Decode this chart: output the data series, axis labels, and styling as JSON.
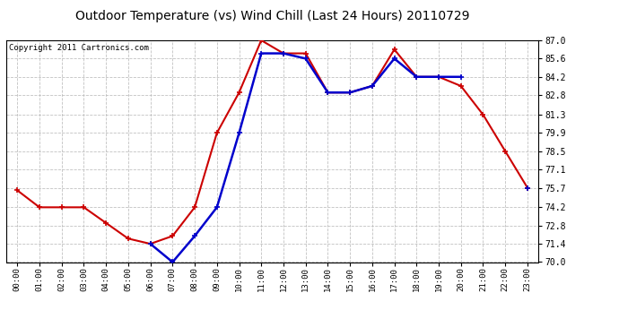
{
  "title": "Outdoor Temperature (vs) Wind Chill (Last 24 Hours) 20110729",
  "copyright": "Copyright 2011 Cartronics.com",
  "hours": [
    "00:00",
    "01:00",
    "02:00",
    "03:00",
    "04:00",
    "05:00",
    "06:00",
    "07:00",
    "08:00",
    "09:00",
    "10:00",
    "11:00",
    "12:00",
    "13:00",
    "14:00",
    "15:00",
    "16:00",
    "17:00",
    "18:00",
    "19:00",
    "20:00",
    "21:00",
    "22:00",
    "23:00"
  ],
  "red_line": [
    75.5,
    74.2,
    74.2,
    74.2,
    73.0,
    71.8,
    71.4,
    72.0,
    74.2,
    79.9,
    83.0,
    87.0,
    86.0,
    86.0,
    83.0,
    83.0,
    83.5,
    86.3,
    84.2,
    84.2,
    83.5,
    81.3,
    78.5,
    75.7
  ],
  "blue_line": [
    null,
    null,
    null,
    null,
    null,
    null,
    71.4,
    70.0,
    72.0,
    74.2,
    79.9,
    86.0,
    86.0,
    85.6,
    83.0,
    83.0,
    83.5,
    85.6,
    84.2,
    84.2,
    84.2,
    null,
    null,
    75.7
  ],
  "ymin": 70.0,
  "ymax": 87.0,
  "yticks": [
    70.0,
    71.4,
    72.8,
    74.2,
    75.7,
    77.1,
    78.5,
    79.9,
    81.3,
    82.8,
    84.2,
    85.6,
    87.0
  ],
  "red_color": "#cc0000",
  "blue_color": "#0000cc",
  "background_color": "#ffffff",
  "plot_bg_color": "#ffffff",
  "grid_color": "#bbbbbb",
  "title_fontsize": 10,
  "copyright_fontsize": 6.5
}
